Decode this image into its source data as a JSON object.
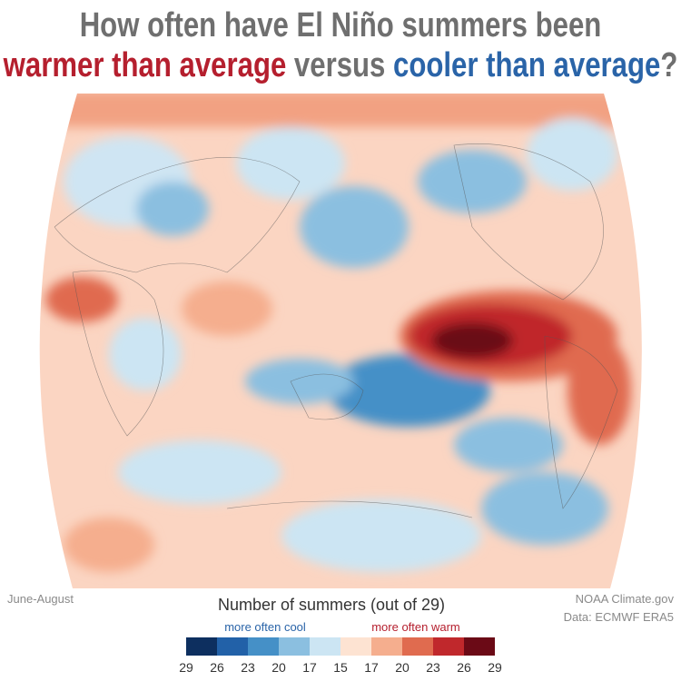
{
  "header": {
    "line1": "How often have El Niño summers been",
    "line2": {
      "warm": "warmer than average",
      "middle": " versus ",
      "cool": "cooler than average",
      "end": "?"
    }
  },
  "legend": {
    "title": "Number of summers (out of 29)",
    "cool_label": "more often cool",
    "warm_label": "more often warm",
    "ticks": [
      29,
      26,
      23,
      20,
      17,
      15,
      17,
      20,
      23,
      26,
      29
    ],
    "colors": [
      "#0d2f5f",
      "#2261a8",
      "#4590c7",
      "#8bbfe0",
      "#cce5f3",
      "#fde3d2",
      "#f5ae8e",
      "#e06b4f",
      "#c0282c",
      "#6b0a16"
    ]
  },
  "footer": {
    "season": "June-August",
    "credit": "NOAA Climate.gov",
    "source": "Data: ECMWF ERA5"
  }
}
